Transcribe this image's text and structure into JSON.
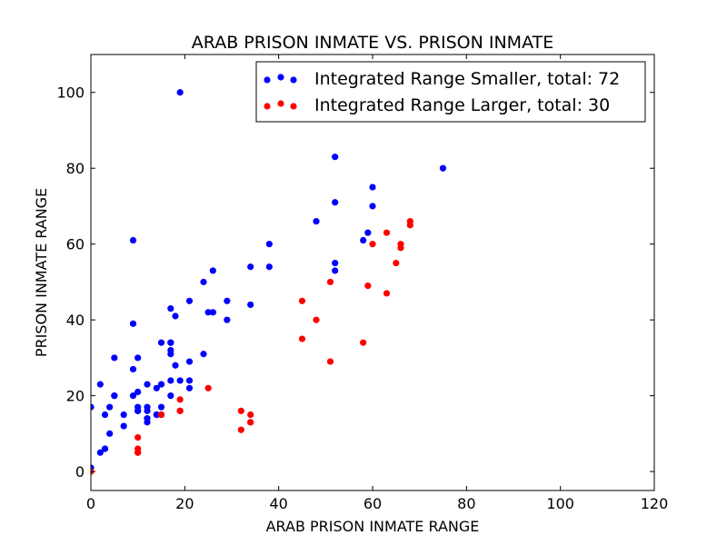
{
  "chart_data": {
    "type": "scatter",
    "title": "ARAB PRISON INMATE VS. PRISON INMATE",
    "xlabel": "ARAB PRISON INMATE RANGE",
    "ylabel": "PRISON INMATE RANGE",
    "xlim": [
      0,
      120
    ],
    "ylim": [
      -5,
      110
    ],
    "xticks": [
      0,
      20,
      40,
      60,
      80,
      100,
      120
    ],
    "yticks": [
      0,
      20,
      40,
      60,
      80,
      100
    ],
    "xtick_labels": [
      "0",
      "20",
      "40",
      "60",
      "80",
      "100",
      "120"
    ],
    "ytick_labels": [
      "0",
      "20",
      "40",
      "60",
      "80",
      "100"
    ],
    "grid": false,
    "legend_position": "top-right",
    "series": [
      {
        "name": "Integrated Range Smaller, total: 72",
        "color": "#0000ff",
        "points": [
          [
            0,
            17
          ],
          [
            0,
            1
          ],
          [
            2,
            5
          ],
          [
            2,
            23
          ],
          [
            3,
            6
          ],
          [
            3,
            15
          ],
          [
            4,
            10
          ],
          [
            4,
            17
          ],
          [
            5,
            20
          ],
          [
            5,
            30
          ],
          [
            7,
            12
          ],
          [
            7,
            15
          ],
          [
            9,
            61
          ],
          [
            9,
            39
          ],
          [
            9,
            27
          ],
          [
            9,
            20
          ],
          [
            10,
            30
          ],
          [
            10,
            21
          ],
          [
            10,
            17
          ],
          [
            10,
            16
          ],
          [
            12,
            23
          ],
          [
            12,
            17
          ],
          [
            12,
            16
          ],
          [
            12,
            14
          ],
          [
            12,
            13
          ],
          [
            14,
            22
          ],
          [
            14,
            15
          ],
          [
            15,
            34
          ],
          [
            15,
            23
          ],
          [
            15,
            17
          ],
          [
            17,
            43
          ],
          [
            17,
            34
          ],
          [
            17,
            32
          ],
          [
            17,
            31
          ],
          [
            17,
            24
          ],
          [
            17,
            20
          ],
          [
            18,
            41
          ],
          [
            18,
            28
          ],
          [
            19,
            100
          ],
          [
            19,
            24
          ],
          [
            21,
            45
          ],
          [
            21,
            29
          ],
          [
            21,
            24
          ],
          [
            21,
            22
          ],
          [
            24,
            50
          ],
          [
            24,
            31
          ],
          [
            25,
            42
          ],
          [
            26,
            53
          ],
          [
            26,
            42
          ],
          [
            29,
            45
          ],
          [
            29,
            40
          ],
          [
            34,
            54
          ],
          [
            34,
            44
          ],
          [
            38,
            60
          ],
          [
            38,
            54
          ],
          [
            48,
            66
          ],
          [
            52,
            83
          ],
          [
            52,
            71
          ],
          [
            52,
            55
          ],
          [
            52,
            53
          ],
          [
            58,
            61
          ],
          [
            59,
            63
          ],
          [
            60,
            75
          ],
          [
            60,
            70
          ],
          [
            75,
            80
          ],
          [
            14,
            15
          ],
          [
            15,
            15
          ],
          [
            17,
            34
          ],
          [
            12,
            14
          ],
          [
            10,
            16
          ],
          [
            5,
            20
          ],
          [
            3,
            6
          ]
        ]
      },
      {
        "name": "Integrated Range Larger, total: 30",
        "color": "#ff0000",
        "points": [
          [
            0,
            0
          ],
          [
            10,
            9
          ],
          [
            10,
            6
          ],
          [
            10,
            5
          ],
          [
            15,
            15
          ],
          [
            19,
            19
          ],
          [
            19,
            16
          ],
          [
            25,
            22
          ],
          [
            32,
            16
          ],
          [
            32,
            11
          ],
          [
            34,
            15
          ],
          [
            34,
            13
          ],
          [
            45,
            45
          ],
          [
            45,
            35
          ],
          [
            48,
            40
          ],
          [
            51,
            50
          ],
          [
            51,
            29
          ],
          [
            58,
            34
          ],
          [
            59,
            49
          ],
          [
            60,
            60
          ],
          [
            63,
            63
          ],
          [
            63,
            47
          ],
          [
            65,
            55
          ],
          [
            66,
            60
          ],
          [
            66,
            59
          ],
          [
            68,
            66
          ],
          [
            68,
            65
          ],
          [
            10,
            5
          ],
          [
            19,
            16
          ],
          [
            34,
            13
          ]
        ]
      }
    ]
  }
}
